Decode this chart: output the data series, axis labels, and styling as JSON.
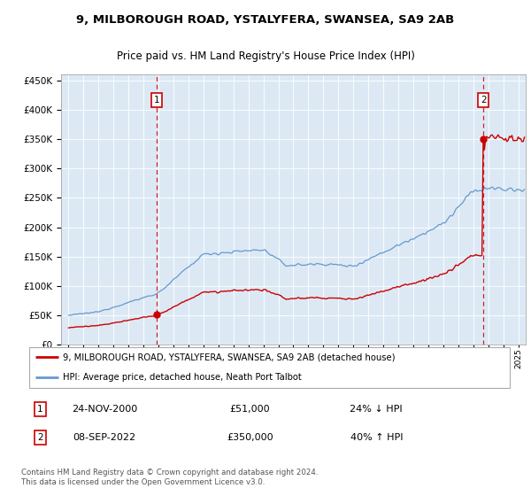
{
  "title_line1": "9, MILBOROUGH ROAD, YSTALYFERA, SWANSEA, SA9 2AB",
  "title_line2": "Price paid vs. HM Land Registry's House Price Index (HPI)",
  "legend_label_red": "9, MILBOROUGH ROAD, YSTALYFERA, SWANSEA, SA9 2AB (detached house)",
  "legend_label_blue": "HPI: Average price, detached house, Neath Port Talbot",
  "sale1_date": "24-NOV-2000",
  "sale1_price": "£51,000",
  "sale1_hpi": "24% ↓ HPI",
  "sale1_year": 2000.9,
  "sale1_value": 51000,
  "sale2_date": "08-SEP-2022",
  "sale2_price": "£350,000",
  "sale2_hpi": "40% ↑ HPI",
  "sale2_year": 2022.67,
  "sale2_value": 350000,
  "footer": "Contains HM Land Registry data © Crown copyright and database right 2024.\nThis data is licensed under the Open Government Licence v3.0.",
  "ylim": [
    0,
    460000
  ],
  "xlim": [
    1994.5,
    2025.5
  ],
  "background_color": "#dce9f5",
  "red_color": "#cc0000",
  "blue_color": "#6699cc"
}
